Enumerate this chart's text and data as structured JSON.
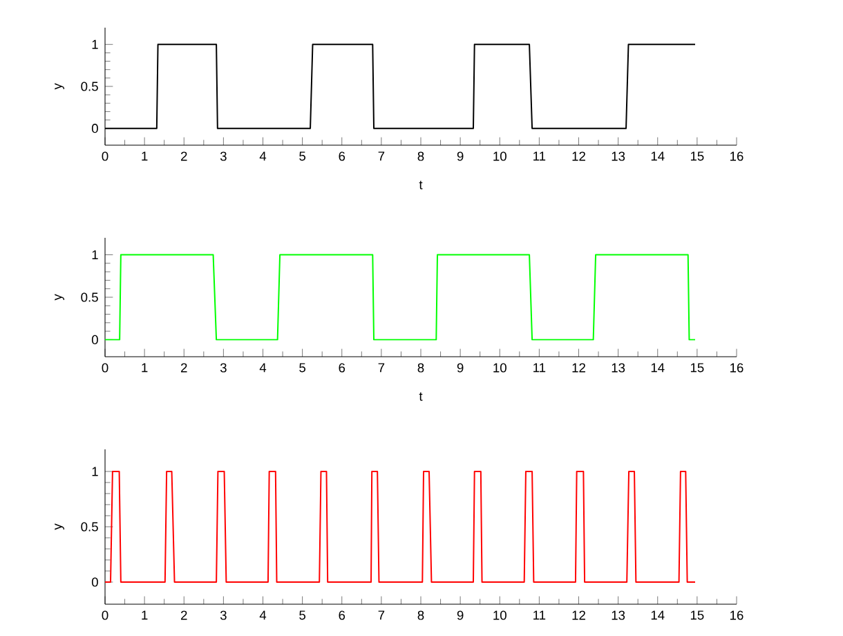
{
  "chart_data": [
    {
      "type": "line",
      "xlabel": "t",
      "ylabel": "y",
      "xlim": [
        0,
        16
      ],
      "ylim": [
        -0.2,
        1.2
      ],
      "xticks": [
        0,
        1,
        2,
        3,
        4,
        5,
        6,
        7,
        8,
        9,
        10,
        11,
        12,
        13,
        14,
        15,
        16
      ],
      "yticks": [
        0,
        0.5,
        1
      ],
      "x": [
        0,
        1.31,
        1.34,
        2.82,
        2.85,
        5.2,
        5.26,
        6.78,
        6.81,
        9.33,
        9.36,
        10.75,
        10.82,
        13.2,
        13.26,
        14.95
      ],
      "series": [
        {
          "color": "#000000",
          "values": [
            0,
            0,
            1,
            1,
            0,
            0,
            1,
            1,
            0,
            0,
            1,
            1,
            0,
            0,
            1,
            1
          ]
        }
      ]
    },
    {
      "type": "line",
      "xlabel": "t",
      "ylabel": "y",
      "xlim": [
        0,
        16
      ],
      "ylim": [
        -0.2,
        1.2
      ],
      "xticks": [
        0,
        1,
        2,
        3,
        4,
        5,
        6,
        7,
        8,
        9,
        10,
        11,
        12,
        13,
        14,
        15,
        16
      ],
      "yticks": [
        0,
        0.5,
        1
      ],
      "x": [
        0,
        0.37,
        0.4,
        2.74,
        2.82,
        4.37,
        4.43,
        6.78,
        6.81,
        8.39,
        8.42,
        10.75,
        10.82,
        12.37,
        12.43,
        14.77,
        14.8,
        14.95
      ],
      "series": [
        {
          "color": "#00ff00",
          "values": [
            0,
            0,
            1,
            1,
            0,
            0,
            1,
            1,
            0,
            0,
            1,
            1,
            0,
            0,
            1,
            1,
            0,
            0
          ]
        }
      ]
    },
    {
      "type": "line",
      "ylabel": "y",
      "xlim": [
        0,
        16
      ],
      "ylim": [
        -0.2,
        1.2
      ],
      "xticks": [
        0,
        1,
        2,
        3,
        4,
        5,
        6,
        7,
        8,
        9,
        10,
        11,
        12,
        13,
        14,
        15,
        16
      ],
      "yticks": [
        0,
        0.5,
        1
      ],
      "x": [
        0,
        0.14,
        0.19,
        0.36,
        0.4,
        1.52,
        1.56,
        1.69,
        1.76,
        2.82,
        2.86,
        3.02,
        3.07,
        4.13,
        4.16,
        4.32,
        4.35,
        5.43,
        5.47,
        5.61,
        5.64,
        6.74,
        6.76,
        6.9,
        6.94,
        8.04,
        8.07,
        8.21,
        8.27,
        9.33,
        9.36,
        9.52,
        9.55,
        10.62,
        10.66,
        10.82,
        10.86,
        11.92,
        11.95,
        12.12,
        12.15,
        13.22,
        13.27,
        13.41,
        13.45,
        14.54,
        14.58,
        14.71,
        14.75,
        14.95
      ],
      "series": [
        {
          "color": "#ff0000",
          "values": [
            0,
            0,
            1,
            1,
            0,
            0,
            1,
            1,
            0,
            0,
            1,
            1,
            0,
            0,
            1,
            1,
            0,
            0,
            1,
            1,
            0,
            0,
            1,
            1,
            0,
            0,
            1,
            1,
            0,
            0,
            1,
            1,
            0,
            0,
            1,
            1,
            0,
            0,
            1,
            1,
            0,
            0,
            1,
            1,
            0,
            0,
            1,
            1,
            0,
            0
          ]
        }
      ]
    }
  ]
}
